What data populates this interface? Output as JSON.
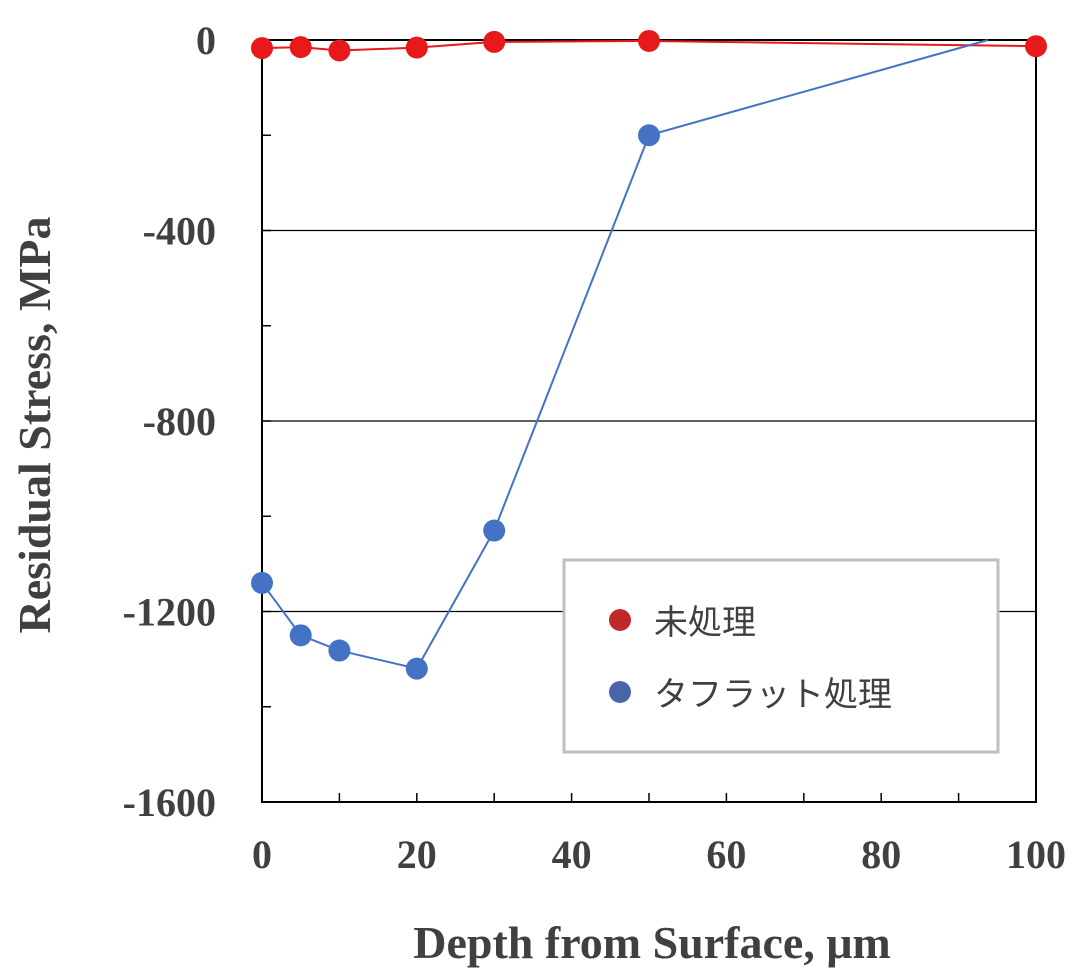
{
  "chart_data": {
    "type": "line",
    "title": "",
    "xlabel": "Depth from Surface, μm",
    "ylabel": "Residual Stress, MPa",
    "xlim": [
      0,
      100
    ],
    "ylim": [
      -1600,
      0
    ],
    "x_ticks": [
      0,
      20,
      40,
      60,
      80,
      100
    ],
    "x_tick_labels": [
      "0",
      "20",
      "40",
      "60",
      "80",
      "100"
    ],
    "y_ticks": [
      0,
      -400,
      -800,
      -1200,
      -1600
    ],
    "y_tick_labels": [
      "0",
      "-400",
      "-800",
      "-1200",
      "-1600"
    ],
    "grid": "horizontal at -400, -800, -1200",
    "legend_position": "bottom-right",
    "series": [
      {
        "name": "未処理",
        "color": "#e8191b",
        "legend_color": "#c0282a",
        "x": [
          0,
          5,
          10,
          20,
          30,
          50,
          100
        ],
        "y": [
          -17,
          -15,
          -22,
          -16,
          -4,
          -2,
          -13
        ]
      },
      {
        "name": "タフラット処理",
        "color": "#4472c4",
        "legend_color": "#4a64a8",
        "x": [
          0,
          5,
          10,
          20,
          30,
          50,
          93.8
        ],
        "y": [
          -1140,
          -1250,
          -1282,
          -1320,
          -1030,
          -200,
          0
        ],
        "marker_count": 6
      }
    ]
  }
}
